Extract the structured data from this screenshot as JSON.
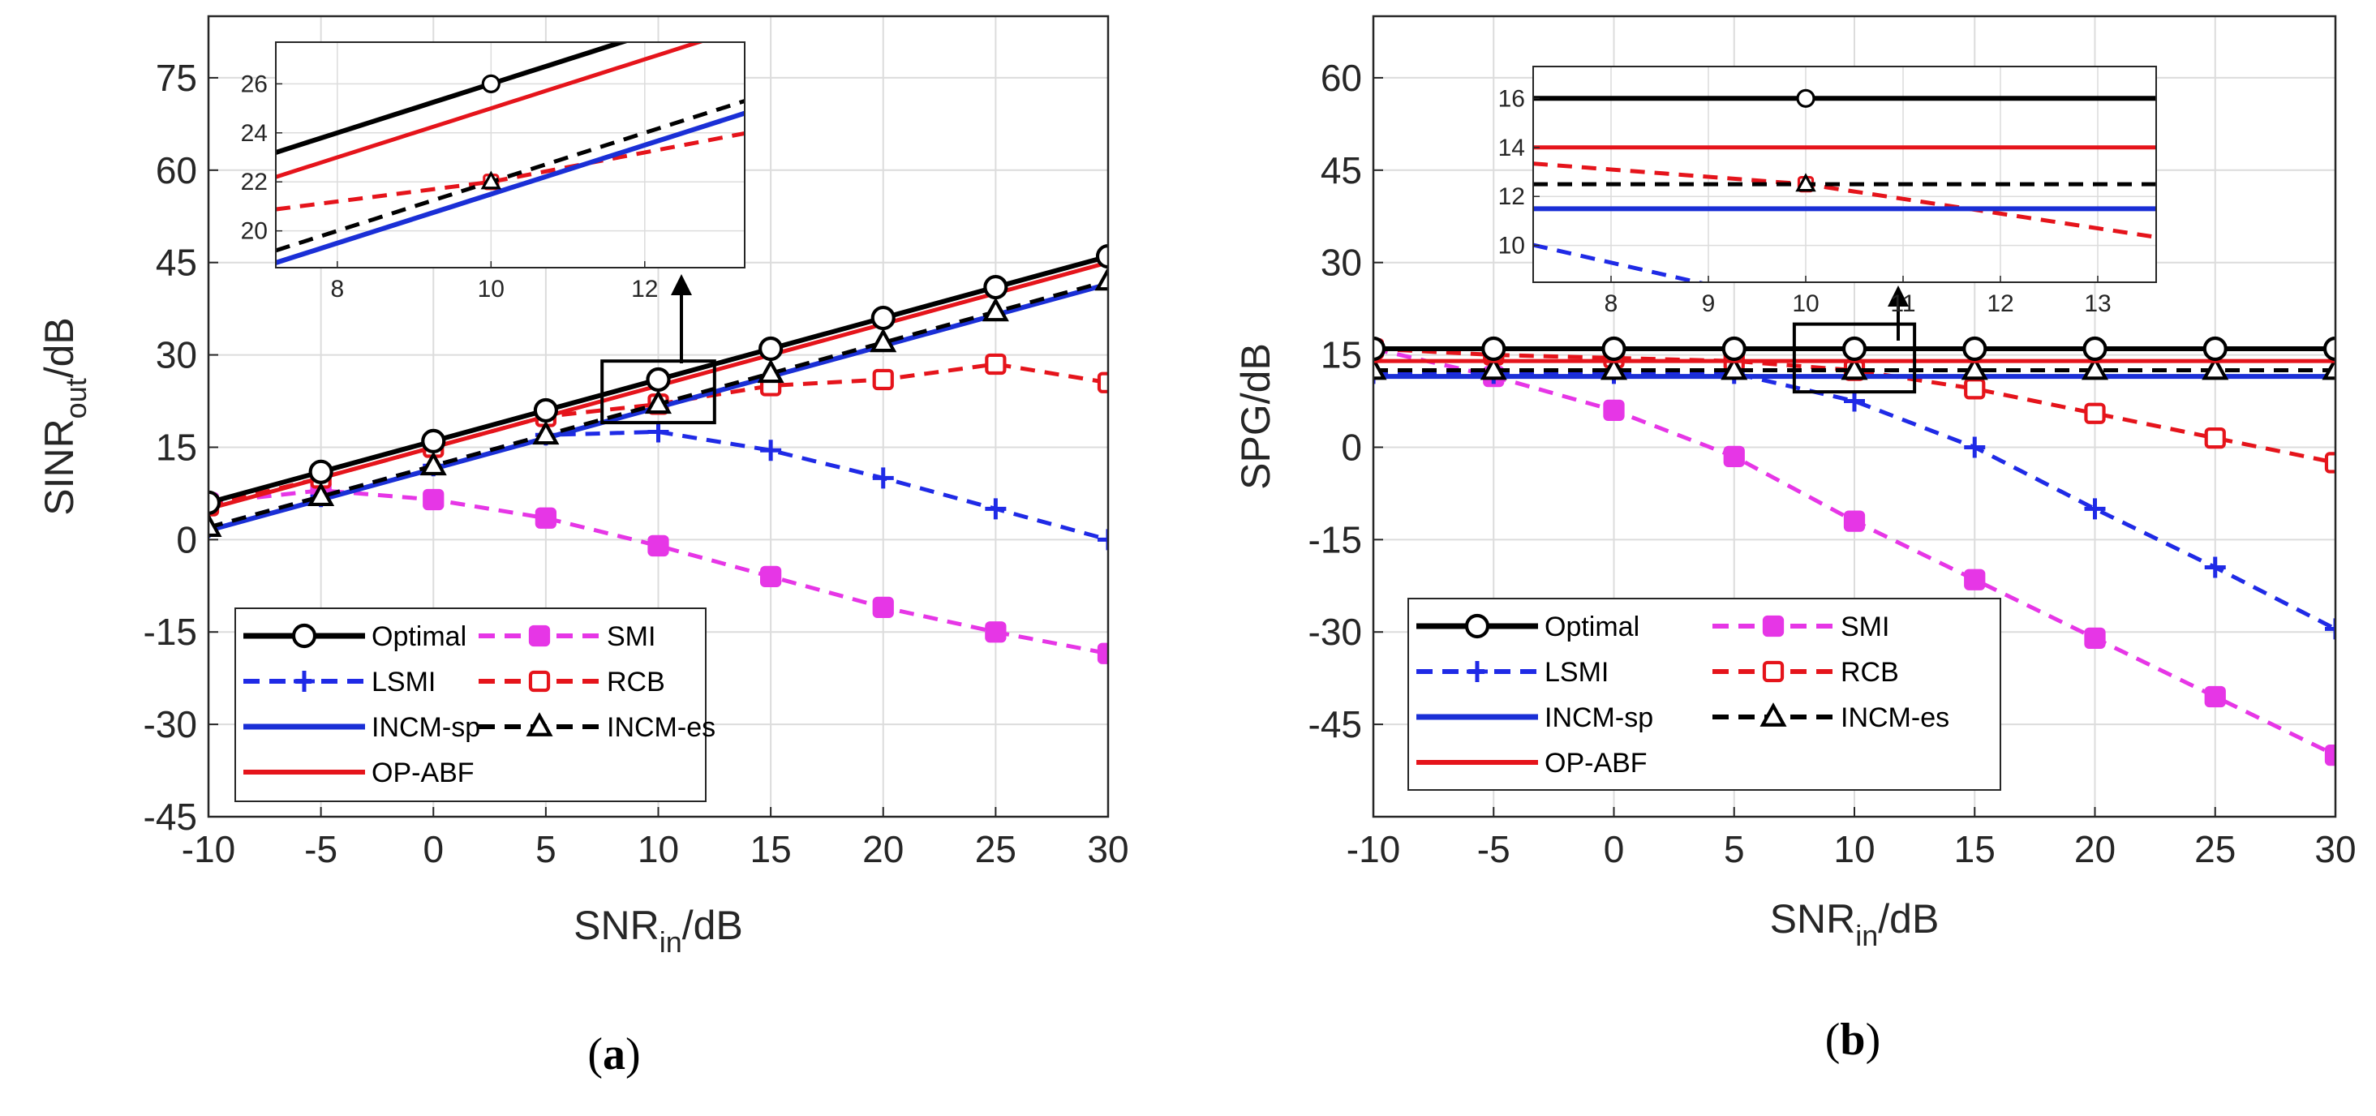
{
  "colors": {
    "Optimal": "#000000",
    "LSMI": "#1f2ae6",
    "INCM-sp": "#1a2fd6",
    "OP-ABF": "#e5141b",
    "SMI": "#e636e6",
    "RCB": "#e5141b",
    "INCM-es": "#000000"
  },
  "chart_data": [
    {
      "type": "line",
      "panel": "a",
      "panel_label": "a",
      "xlabel": "SNR",
      "xlabel_sub": "in",
      "xlabel_suffix": "/dB",
      "ylabel": "SINR",
      "ylabel_sub": "out",
      "ylabel_suffix": "/dB",
      "xlim": [
        -10,
        30
      ],
      "ylim": [
        -45,
        85
      ],
      "xticks": [
        -10,
        -5,
        0,
        5,
        10,
        15,
        20,
        25,
        30
      ],
      "xtick_labels": [
        "-10",
        "-5",
        "0",
        "5",
        "10",
        "15",
        "20",
        "25",
        "30"
      ],
      "yticks": [
        -45,
        -30,
        -15,
        0,
        15,
        30,
        45,
        60,
        75
      ],
      "ytick_labels": [
        "-45",
        "-30",
        "-15",
        "0",
        "15",
        "30",
        "45",
        "60",
        "75"
      ],
      "x": [
        -10,
        -5,
        0,
        5,
        10,
        15,
        20,
        25,
        30
      ],
      "series": [
        {
          "name": "Optimal",
          "values": [
            6,
            11,
            16,
            21,
            26,
            31,
            36,
            41,
            46
          ]
        },
        {
          "name": "LSMI",
          "values": [
            2,
            7,
            12,
            17,
            17.5,
            14.5,
            10,
            5,
            0
          ]
        },
        {
          "name": "INCM-sp",
          "values": [
            1.5,
            6.5,
            11.5,
            16.5,
            21.5,
            26.5,
            31.5,
            36.5,
            41.5
          ]
        },
        {
          "name": "OP-ABF",
          "values": [
            5,
            10,
            15,
            20,
            25,
            30,
            35,
            40,
            45
          ]
        },
        {
          "name": "SMI",
          "values": [
            6,
            8,
            6.5,
            3.5,
            -1,
            -6,
            -11,
            -15,
            -18.5
          ]
        },
        {
          "name": "RCB",
          "values": [
            5.5,
            10,
            15,
            20,
            22,
            25,
            26,
            28.5,
            25.5
          ]
        },
        {
          "name": "INCM-es",
          "values": [
            2,
            7,
            12,
            17,
            22,
            27,
            32,
            37,
            42
          ]
        }
      ],
      "legend_position": "bottom-left",
      "zoom_box": {
        "x": [
          7.5,
          12.5
        ],
        "y": [
          19,
          29
        ]
      },
      "inset": {
        "xlim": [
          7.2,
          13.3
        ],
        "ylim": [
          18.5,
          27.7
        ],
        "xticks": [
          8,
          10,
          12
        ],
        "xtick_labels": [
          "8",
          "10",
          "12"
        ],
        "yticks": [
          20,
          22,
          24,
          26
        ],
        "ytick_labels": [
          "20",
          "22",
          "24",
          "26"
        ],
        "marker_x": 10
      }
    },
    {
      "type": "line",
      "panel": "b",
      "panel_label": "b",
      "xlabel": "SNR",
      "xlabel_sub": "in",
      "xlabel_suffix": "/dB",
      "ylabel": "SPG/dB",
      "ylabel_sub": "",
      "ylabel_suffix": "",
      "xlim": [
        -10,
        30
      ],
      "ylim": [
        -60,
        70
      ],
      "xticks": [
        -10,
        -5,
        0,
        5,
        10,
        15,
        20,
        25,
        30
      ],
      "xtick_labels": [
        "-10",
        "-5",
        "0",
        "5",
        "10",
        "15",
        "20",
        "25",
        "30"
      ],
      "yticks": [
        -45,
        -30,
        -15,
        0,
        15,
        30,
        45,
        60
      ],
      "ytick_labels": [
        "-45",
        "-30",
        "-15",
        "0",
        "15",
        "30",
        "45",
        "60"
      ],
      "x": [
        -10,
        -5,
        0,
        5,
        10,
        15,
        20,
        25,
        30
      ],
      "series": [
        {
          "name": "Optimal",
          "values": [
            16,
            16,
            16,
            16,
            16,
            16,
            16,
            16,
            16
          ]
        },
        {
          "name": "LSMI",
          "values": [
            12,
            12,
            12,
            12,
            7.5,
            0,
            -10,
            -19.5,
            -29.5
          ]
        },
        {
          "name": "INCM-sp",
          "values": [
            11.5,
            11.5,
            11.5,
            11.5,
            11.5,
            11.5,
            11.5,
            11.5,
            11.5
          ]
        },
        {
          "name": "OP-ABF",
          "values": [
            14,
            14,
            14,
            14,
            14,
            14,
            14,
            14,
            14
          ]
        },
        {
          "name": "SMI",
          "values": [
            16,
            11.5,
            6,
            -1.5,
            -12,
            -21.5,
            -31,
            -40.5,
            -50
          ]
        },
        {
          "name": "RCB",
          "values": [
            16,
            15,
            14.5,
            14,
            12.5,
            9.5,
            5.5,
            1.5,
            -2.5
          ]
        },
        {
          "name": "INCM-es",
          "values": [
            12.5,
            12.5,
            12.5,
            12.5,
            12.5,
            12.5,
            12.5,
            12.5,
            12.5
          ]
        }
      ],
      "legend_position": "bottom-left",
      "zoom_box": {
        "x": [
          7.5,
          12.5
        ],
        "y": [
          9,
          20
        ]
      },
      "inset": {
        "xlim": [
          7.2,
          13.6
        ],
        "ylim": [
          8.5,
          17.3
        ],
        "xticks": [
          8,
          9,
          10,
          11,
          12,
          13
        ],
        "xtick_labels": [
          "8",
          "9",
          "10",
          "11",
          "12",
          "13"
        ],
        "yticks": [
          10,
          12,
          14,
          16
        ],
        "ytick_labels": [
          "10",
          "12",
          "14",
          "16"
        ],
        "marker_x": 10
      }
    }
  ]
}
